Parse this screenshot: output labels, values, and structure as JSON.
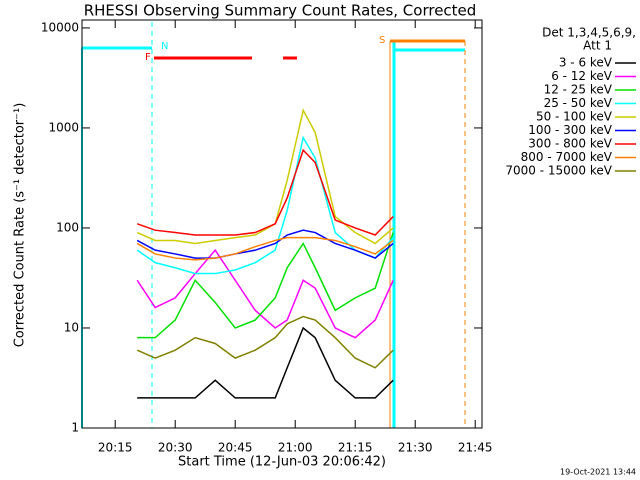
{
  "chart_data": {
    "type": "line",
    "title": "RHESSI Observing Summary Count Rates, Corrected",
    "xlabel": "Start Time (12-Jun-03 20:06:42)",
    "ylabel": "Corrected Count Rate (s⁻¹ detector⁻¹)",
    "legend_title": [
      "Det 1,3,4,5,6,9,",
      "Att 1"
    ],
    "timestamp": "19-Oct-2021 13:44",
    "flags": [
      "N",
      "F",
      "S"
    ],
    "log_y": true,
    "xlim": [
      6.7,
      106.7
    ],
    "ylim": [
      1,
      12000
    ],
    "xticks": [
      {
        "value": 15,
        "label": "20:15"
      },
      {
        "value": 30,
        "label": "20:30"
      },
      {
        "value": 45,
        "label": "20:45"
      },
      {
        "value": 60,
        "label": "21:00"
      },
      {
        "value": 75,
        "label": "21:15"
      },
      {
        "value": 90,
        "label": "21:30"
      },
      {
        "value": 105,
        "label": "21:45"
      }
    ],
    "yticks": [
      1,
      10,
      100,
      1000,
      10000
    ],
    "x": [
      20.5,
      25,
      30,
      35,
      40,
      45,
      50,
      55,
      58,
      62,
      65,
      70,
      75,
      80,
      84.5
    ],
    "series": [
      {
        "name": "3 - 6 keV",
        "color": "#000000",
        "values": [
          2,
          2,
          2,
          2,
          3,
          2,
          2,
          2,
          4,
          10,
          8,
          3,
          2,
          2,
          3
        ]
      },
      {
        "name": "6 - 12 keV",
        "color": "#ff00ff",
        "values": [
          30,
          16,
          20,
          35,
          60,
          30,
          15,
          10,
          12,
          30,
          25,
          10,
          8,
          12,
          30
        ]
      },
      {
        "name": "12 - 25 keV",
        "color": "#00e000",
        "values": [
          8,
          8,
          12,
          30,
          18,
          10,
          12,
          20,
          40,
          70,
          40,
          15,
          20,
          25,
          90
        ]
      },
      {
        "name": "25 - 50 keV",
        "color": "#00ffff",
        "values": [
          60,
          45,
          40,
          35,
          35,
          38,
          45,
          60,
          150,
          800,
          500,
          90,
          60,
          50,
          80
        ]
      },
      {
        "name": "50 - 100 keV",
        "color": "#cccc00",
        "values": [
          90,
          75,
          75,
          70,
          75,
          80,
          85,
          110,
          300,
          1500,
          900,
          130,
          90,
          70,
          100
        ]
      },
      {
        "name": "100 - 300 keV",
        "color": "#0000ff",
        "values": [
          75,
          60,
          55,
          50,
          50,
          55,
          60,
          70,
          85,
          95,
          90,
          70,
          60,
          50,
          70
        ]
      },
      {
        "name": "300 - 800 keV",
        "color": "#ff0000",
        "values": [
          110,
          95,
          90,
          85,
          85,
          85,
          90,
          110,
          200,
          600,
          450,
          120,
          100,
          85,
          130
        ]
      },
      {
        "name": "800 - 7000 keV",
        "color": "#ff8000",
        "values": [
          70,
          55,
          50,
          48,
          50,
          55,
          65,
          75,
          80,
          80,
          80,
          75,
          65,
          55,
          75
        ]
      },
      {
        "name": "7000 - 15000 keV",
        "color": "#808000",
        "values": [
          6,
          5,
          6,
          8,
          7,
          5,
          6,
          8,
          11,
          13,
          12,
          8,
          5,
          4,
          6
        ]
      }
    ]
  }
}
